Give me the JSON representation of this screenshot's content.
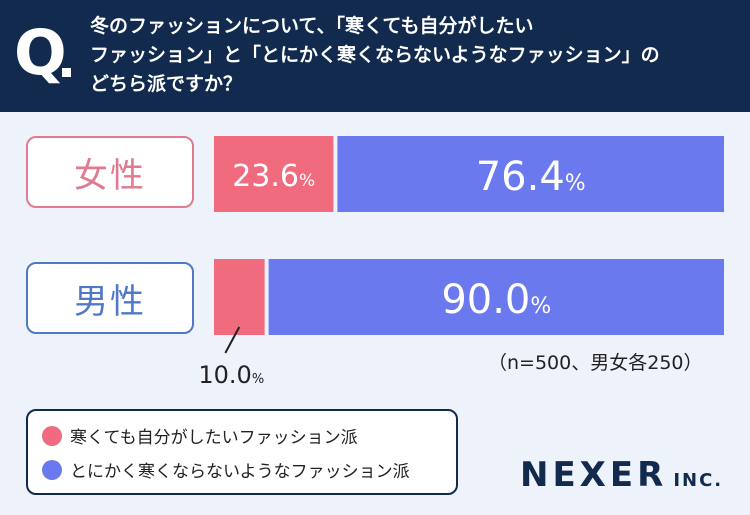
{
  "question": {
    "mark": "Q",
    "lines": [
      "冬のファッションについて、「寒くても自分がしたい",
      "ファッション」と「とにかく寒くならないようなファッション」の",
      "どちら派ですか？"
    ]
  },
  "colors": {
    "pink": "#f06b7d",
    "blue": "#6b79ee",
    "navy": "#112a4e"
  },
  "chart_data": {
    "type": "bar",
    "orientation": "horizontal-stacked-100",
    "categories": [
      "女性",
      "男性"
    ],
    "series": [
      {
        "name": "寒くても自分がしたいファッション派",
        "values": [
          23.6,
          10.0
        ]
      },
      {
        "name": "とにかく寒くならないようなファッション派",
        "values": [
          76.4,
          90.0
        ]
      }
    ],
    "unit": "%",
    "legend": "bottom-left"
  },
  "labels": {
    "female": "女性",
    "male": "男性",
    "female_pink": "23.6",
    "female_blue": "76.4",
    "male_pink": "10.0",
    "male_blue": "90.0",
    "percent": "%"
  },
  "note": "（n=500、男女各250）",
  "legend": {
    "item1": "寒くても自分がしたいファッション派",
    "item2": "とにかく寒くならないようなファッション派"
  },
  "logo": {
    "main": "NEXER",
    "sub": "INC."
  }
}
